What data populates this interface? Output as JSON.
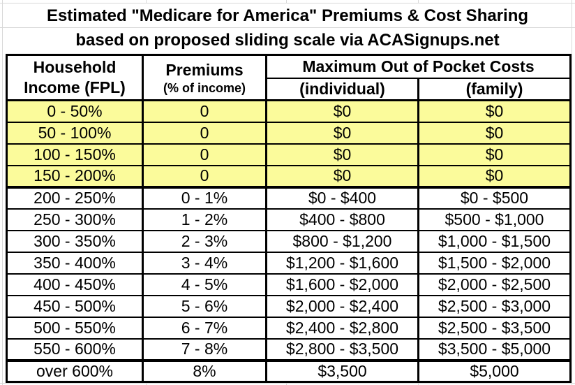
{
  "title": {
    "line1": "Estimated \"Medicare for America\" Premiums & Cost Sharing",
    "line2": "based on proposed sliding scale via ACASignups.net"
  },
  "table": {
    "headers": {
      "income_line1": "Household",
      "income_line2": "Income (FPL)",
      "premiums_line1": "Premiums",
      "premiums_line2": "(% of income)",
      "moop": "Maximum Out of Pocket Costs",
      "individual": "(individual)",
      "family": "(family)"
    },
    "rows": [
      {
        "income": "0 - 50%",
        "premium": "0",
        "individual": "$0",
        "family": "$0",
        "highlight": true
      },
      {
        "income": "50 - 100%",
        "premium": "0",
        "individual": "$0",
        "family": "$0",
        "highlight": true
      },
      {
        "income": "100 - 150%",
        "premium": "0",
        "individual": "$0",
        "family": "$0",
        "highlight": true
      },
      {
        "income": "150 - 200%",
        "premium": "0",
        "individual": "$0",
        "family": "$0",
        "highlight": true
      },
      {
        "income": "200 - 250%",
        "premium": "0 - 1%",
        "individual": "$0 - $400",
        "family": "$0 - $500",
        "highlight": false
      },
      {
        "income": "250 - 300%",
        "premium": "1 - 2%",
        "individual": "$400 - $800",
        "family": "$500 - $1,000",
        "highlight": false
      },
      {
        "income": "300 - 350%",
        "premium": "2 - 3%",
        "individual": "$800 - $1,200",
        "family": "$1,000 - $1,500",
        "highlight": false
      },
      {
        "income": "350 - 400%",
        "premium": "3 - 4%",
        "individual": "$1,200 - $1,600",
        "family": "$1,500 - $2,000",
        "highlight": false
      },
      {
        "income": "400 - 450%",
        "premium": "4 - 5%",
        "individual": "$1,600 - $2,000",
        "family": "$2,000 - $2,500",
        "highlight": false
      },
      {
        "income": "450 - 500%",
        "premium": "5 - 6%",
        "individual": "$2,000 - $2,400",
        "family": "$2,500 - $3,000",
        "highlight": false
      },
      {
        "income": "500 - 550%",
        "premium": "6 - 7%",
        "individual": "$2,400 - $2,800",
        "family": "$2,500 - $3,500",
        "highlight": false
      },
      {
        "income": "550 - 600%",
        "premium": "7 - 8%",
        "individual": "$2,800 - $3,500",
        "family": "$3,500 - $5,000",
        "highlight": false
      },
      {
        "income": "over 600%",
        "premium": "8%",
        "individual": "$3,500",
        "family": "$5,000",
        "highlight": false
      }
    ]
  },
  "colors": {
    "highlight_yellow": "#FBFB9B",
    "border_black": "#000000",
    "gridline_gray": "#d9d9d9"
  },
  "chart_data": {
    "type": "table",
    "title": "Estimated \"Medicare for America\" Premiums & Cost Sharing",
    "subtitle": "based on proposed sliding scale via ACASignups.net",
    "columns": [
      "Household Income (FPL)",
      "Premiums (% of income)",
      "Maximum Out of Pocket Costs (individual)",
      "Maximum Out of Pocket Costs (family)"
    ],
    "rows": [
      [
        "0 - 50%",
        "0",
        "$0",
        "$0"
      ],
      [
        "50 - 100%",
        "0",
        "$0",
        "$0"
      ],
      [
        "100 - 150%",
        "0",
        "$0",
        "$0"
      ],
      [
        "150 - 200%",
        "0",
        "$0",
        "$0"
      ],
      [
        "200 - 250%",
        "0 - 1%",
        "$0 - $400",
        "$0 - $500"
      ],
      [
        "250 - 300%",
        "1 - 2%",
        "$400 - $800",
        "$500 - $1,000"
      ],
      [
        "300 - 350%",
        "2 - 3%",
        "$800 - $1,200",
        "$1,000 - $1,500"
      ],
      [
        "350 - 400%",
        "3 - 4%",
        "$1,200 - $1,600",
        "$1,500 - $2,000"
      ],
      [
        "400 - 450%",
        "4 - 5%",
        "$1,600 - $2,000",
        "$2,000 - $2,500"
      ],
      [
        "450 - 500%",
        "5 - 6%",
        "$2,000 - $2,400",
        "$2,500 - $3,000"
      ],
      [
        "500 - 550%",
        "6 - 7%",
        "$2,400 - $2,800",
        "$2,500 - $3,500"
      ],
      [
        "550 - 600%",
        "7 - 8%",
        "$2,800 - $3,500",
        "$3,500 - $5,000"
      ],
      [
        "over 600%",
        "8%",
        "$3,500",
        "$5,000"
      ]
    ],
    "highlighted_row_indices": [
      0,
      1,
      2,
      3
    ],
    "layout_hints": "rows 0-200% FPL highlighted pale yellow; thick black section borders below header, below 150-200% row, and above over-600% row"
  }
}
